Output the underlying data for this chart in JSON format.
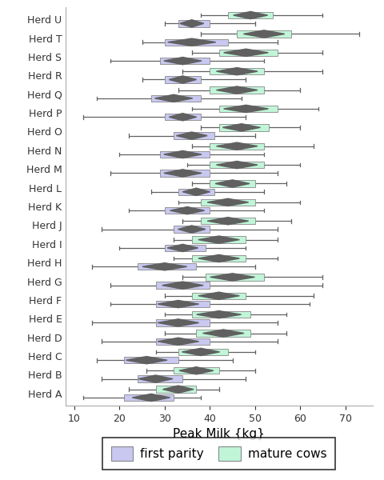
{
  "herds": [
    "Herd U",
    "Herd T",
    "Herd S",
    "Herd R",
    "Herd Q",
    "Herd P",
    "Herd O",
    "Herd N",
    "Herd M",
    "Herd L",
    "Herd K",
    "Herd J",
    "Herd I",
    "Herd H",
    "Herd G",
    "Herd F",
    "Herd E",
    "Herd D",
    "Herd C",
    "Herd B",
    "Herd A"
  ],
  "first_parity": [
    {
      "wlo": 30,
      "q1": 33,
      "med": 36,
      "q3": 40,
      "whi": 50
    },
    {
      "wlo": 25,
      "q1": 30,
      "med": 36,
      "q3": 44,
      "whi": 55
    },
    {
      "wlo": 18,
      "q1": 29,
      "med": 34,
      "q3": 40,
      "whi": 52
    },
    {
      "wlo": 25,
      "q1": 30,
      "med": 34,
      "q3": 38,
      "whi": 48
    },
    {
      "wlo": 15,
      "q1": 27,
      "med": 32,
      "q3": 38,
      "whi": 47
    },
    {
      "wlo": 12,
      "q1": 30,
      "med": 34,
      "q3": 38,
      "whi": 48
    },
    {
      "wlo": 22,
      "q1": 32,
      "med": 36,
      "q3": 41,
      "whi": 50
    },
    {
      "wlo": 20,
      "q1": 29,
      "med": 34,
      "q3": 40,
      "whi": 52
    },
    {
      "wlo": 18,
      "q1": 29,
      "med": 34,
      "q3": 40,
      "whi": 55
    },
    {
      "wlo": 27,
      "q1": 33,
      "med": 37,
      "q3": 41,
      "whi": 52
    },
    {
      "wlo": 22,
      "q1": 30,
      "med": 35,
      "q3": 40,
      "whi": 52
    },
    {
      "wlo": 16,
      "q1": 32,
      "med": 36,
      "q3": 40,
      "whi": 55
    },
    {
      "wlo": 20,
      "q1": 30,
      "med": 34,
      "q3": 39,
      "whi": 48
    },
    {
      "wlo": 14,
      "q1": 24,
      "med": 30,
      "q3": 37,
      "whi": 50
    },
    {
      "wlo": 18,
      "q1": 28,
      "med": 34,
      "q3": 40,
      "whi": 65
    },
    {
      "wlo": 18,
      "q1": 28,
      "med": 33,
      "q3": 40,
      "whi": 62
    },
    {
      "wlo": 14,
      "q1": 28,
      "med": 33,
      "q3": 40,
      "whi": 55
    },
    {
      "wlo": 16,
      "q1": 28,
      "med": 33,
      "q3": 40,
      "whi": 55
    },
    {
      "wlo": 15,
      "q1": 21,
      "med": 26,
      "q3": 33,
      "whi": 45
    },
    {
      "wlo": 16,
      "q1": 24,
      "med": 28,
      "q3": 34,
      "whi": 48
    },
    {
      "wlo": 12,
      "q1": 21,
      "med": 27,
      "q3": 32,
      "whi": 38
    }
  ],
  "mature_cows": [
    {
      "wlo": 38,
      "q1": 44,
      "med": 49,
      "q3": 54,
      "whi": 65
    },
    {
      "wlo": 38,
      "q1": 46,
      "med": 52,
      "q3": 58,
      "whi": 73
    },
    {
      "wlo": 36,
      "q1": 42,
      "med": 48,
      "q3": 55,
      "whi": 65
    },
    {
      "wlo": 34,
      "q1": 40,
      "med": 46,
      "q3": 52,
      "whi": 65
    },
    {
      "wlo": 33,
      "q1": 40,
      "med": 46,
      "q3": 52,
      "whi": 60
    },
    {
      "wlo": 36,
      "q1": 42,
      "med": 48,
      "q3": 55,
      "whi": 64
    },
    {
      "wlo": 38,
      "q1": 42,
      "med": 47,
      "q3": 53,
      "whi": 60
    },
    {
      "wlo": 36,
      "q1": 40,
      "med": 46,
      "q3": 52,
      "whi": 63
    },
    {
      "wlo": 35,
      "q1": 40,
      "med": 46,
      "q3": 52,
      "whi": 60
    },
    {
      "wlo": 36,
      "q1": 40,
      "med": 45,
      "q3": 50,
      "whi": 57
    },
    {
      "wlo": 33,
      "q1": 38,
      "med": 44,
      "q3": 50,
      "whi": 60
    },
    {
      "wlo": 34,
      "q1": 38,
      "med": 44,
      "q3": 50,
      "whi": 58
    },
    {
      "wlo": 32,
      "q1": 36,
      "med": 42,
      "q3": 48,
      "whi": 55
    },
    {
      "wlo": 32,
      "q1": 36,
      "med": 42,
      "q3": 48,
      "whi": 55
    },
    {
      "wlo": 34,
      "q1": 39,
      "med": 45,
      "q3": 52,
      "whi": 65
    },
    {
      "wlo": 30,
      "q1": 36,
      "med": 42,
      "q3": 48,
      "whi": 63
    },
    {
      "wlo": 30,
      "q1": 36,
      "med": 42,
      "q3": 49,
      "whi": 57
    },
    {
      "wlo": 30,
      "q1": 37,
      "med": 43,
      "q3": 49,
      "whi": 57
    },
    {
      "wlo": 28,
      "q1": 33,
      "med": 38,
      "q3": 44,
      "whi": 50
    },
    {
      "wlo": 26,
      "q1": 32,
      "med": 37,
      "q3": 42,
      "whi": 50
    },
    {
      "wlo": 22,
      "q1": 28,
      "med": 33,
      "q3": 37,
      "whi": 42
    }
  ],
  "xlim": [
    8,
    76
  ],
  "xticks": [
    10,
    20,
    30,
    40,
    50,
    60,
    70
  ],
  "xlabel": "Peak Milk {kg}",
  "fp_color": "#c8c8f0",
  "mc_color": "#c0f5d8",
  "median_color": "#606060",
  "whisker_color": "#606060",
  "box_edge_color": "#888888",
  "axis_fontsize": 11,
  "tick_fontsize": 9,
  "legend_fp_label": "first parity",
  "legend_mc_label": "mature cows"
}
